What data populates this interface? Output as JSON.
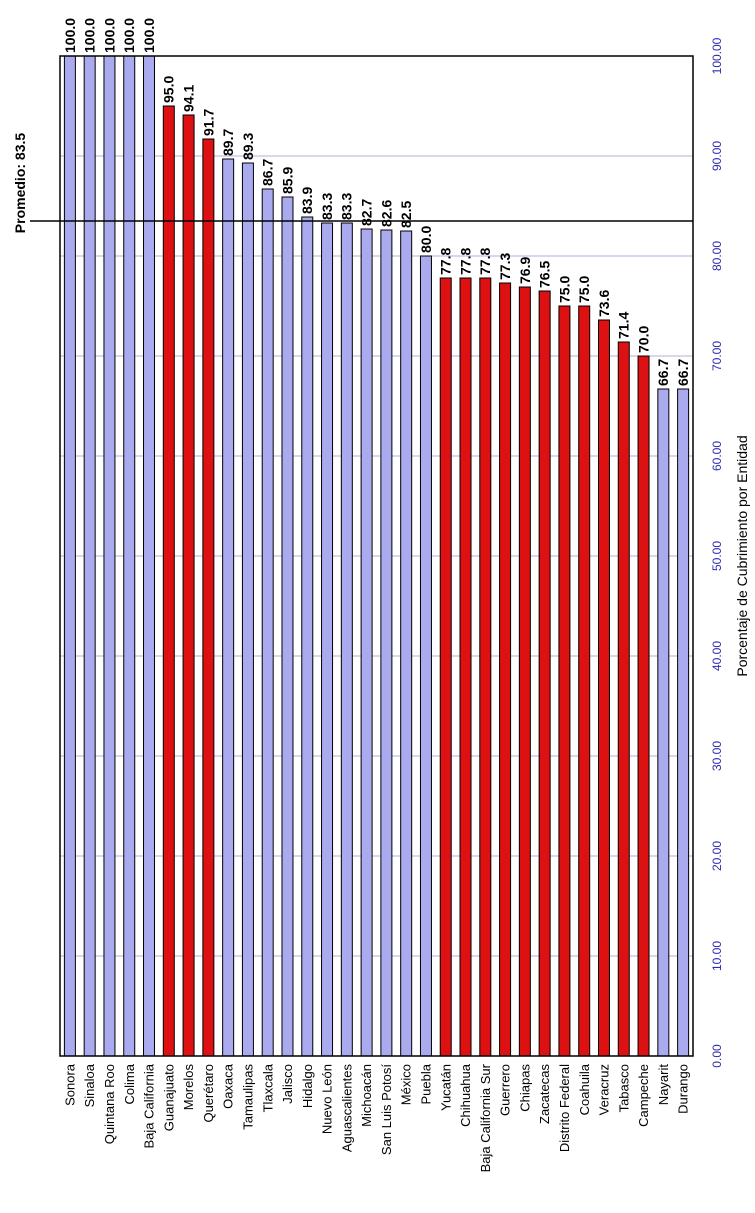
{
  "chart_data": {
    "type": "bar",
    "orientation": "rotated-90",
    "categories": [
      "Sonora",
      "Sinaloa",
      "Quintana Roo",
      "Colima",
      "Baja California",
      "Guanajuato",
      "Morelos",
      "Querétaro",
      "Oaxaca",
      "Tamaulipas",
      "Tlaxcala",
      "Jalisco",
      "Hidalgo",
      "Nuevo León",
      "Aguascalientes",
      "Michoacán",
      "San Luis Potosí",
      "México",
      "Puebla",
      "Yucatán",
      "Chihuahua",
      "Baja California Sur",
      "Guerrero",
      "Chiapas",
      "Zacatecas",
      "Distrito Federal",
      "Coahuila",
      "Veracruz",
      "Tabasco",
      "Campeche",
      "Nayarit",
      "Durango"
    ],
    "values": [
      100.0,
      100.0,
      100.0,
      100.0,
      100.0,
      95.0,
      94.1,
      91.7,
      89.7,
      89.3,
      86.7,
      85.9,
      83.9,
      83.3,
      83.3,
      82.7,
      82.6,
      82.5,
      80.0,
      77.8,
      77.8,
      77.8,
      77.3,
      76.9,
      76.5,
      75.0,
      75.0,
      73.6,
      71.4,
      70.0,
      66.7,
      66.7
    ],
    "value_labels": [
      "100.0",
      "100.0",
      "100.0",
      "100.0",
      "100.0",
      "95.0",
      "94.1",
      "91.7",
      "89.7",
      "89.3",
      "86.7",
      "85.9",
      "83.9",
      "83.3",
      "83.3",
      "82.7",
      "82.6",
      "82.5",
      "80.0",
      "77.8",
      "77.8",
      "77.8",
      "77.3",
      "76.9",
      "76.5",
      "75.0",
      "75.0",
      "73.6",
      "71.4",
      "70.0",
      "66.7",
      "66.7"
    ],
    "bar_colors": [
      "#aaaaee",
      "#aaaaee",
      "#aaaaee",
      "#aaaaee",
      "#aaaaee",
      "#dd1111",
      "#dd1111",
      "#dd1111",
      "#aaaaee",
      "#aaaaee",
      "#aaaaee",
      "#aaaaee",
      "#aaaaee",
      "#aaaaee",
      "#aaaaee",
      "#aaaaee",
      "#aaaaee",
      "#aaaaee",
      "#aaaaee",
      "#dd1111",
      "#dd1111",
      "#dd1111",
      "#dd1111",
      "#dd1111",
      "#dd1111",
      "#dd1111",
      "#dd1111",
      "#dd1111",
      "#dd1111",
      "#dd1111",
      "#aaaaee",
      "#aaaaee"
    ],
    "ylim": [
      0,
      100
    ],
    "ticks": [
      0,
      10,
      20,
      30,
      40,
      50,
      60,
      70,
      80,
      90,
      100
    ],
    "tick_labels": [
      "0.00",
      "10.00",
      "20.00",
      "30.00",
      "40.00",
      "50.00",
      "60.00",
      "70.00",
      "80.00",
      "90.00",
      "100.00"
    ],
    "ylabel": "Porcentaje de Cubrimiento por Entidad",
    "xlabel": "",
    "title": "",
    "grid": true,
    "average": {
      "value": 83.5,
      "label": "Promedio: 83.5"
    }
  }
}
